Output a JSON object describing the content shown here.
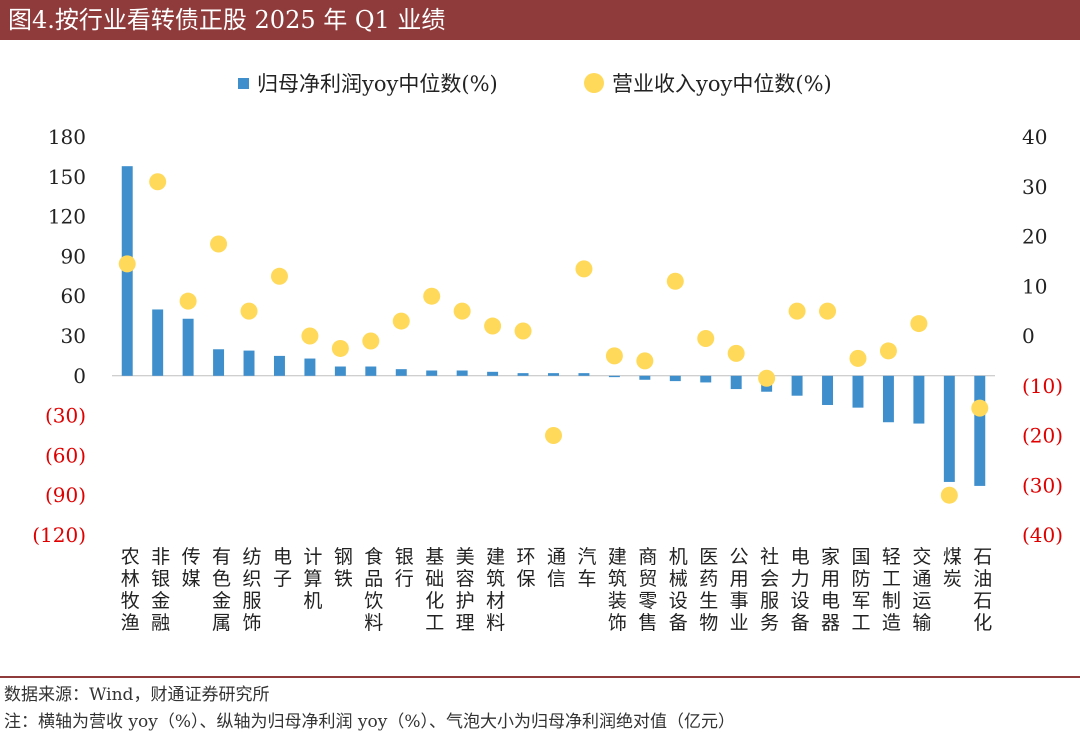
{
  "title": "图4.按行业看转债正股 2025 年 Q1 业绩",
  "source": "数据来源：Wind，财通证券研究所",
  "note": "注：横轴为营收 yoy（%）、纵轴为归母净利润 yoy（%）、气泡大小为归母净利润绝对值（亿元）",
  "colors": {
    "title_bg": "#8f3b3b",
    "bar": "#3f8fcd",
    "dot": "#ffd95a",
    "negative_tick": "#e00000"
  },
  "chart_data": {
    "type": "bar",
    "categories": [
      "农林牧渔",
      "非银金融",
      "传媒",
      "有色金属",
      "纺织服饰",
      "电子",
      "计算机",
      "钢铁",
      "食品饮料",
      "银行",
      "基础化工",
      "美容护理",
      "建筑材料",
      "环保",
      "通信",
      "汽车",
      "建筑装饰",
      "商贸零售",
      "机械设备",
      "医药生物",
      "公用事业",
      "社会服务",
      "电力设备",
      "家用电器",
      "国防军工",
      "轻工制造",
      "交通运输",
      "煤炭",
      "石油石化"
    ],
    "series": [
      {
        "name": "归母净利润yoy中位数(%)",
        "axis": "left",
        "type": "bar",
        "values": [
          158,
          50,
          43,
          20,
          19,
          15,
          13,
          7,
          7,
          5,
          4,
          4,
          3,
          2,
          2,
          2,
          -1,
          -3,
          -4,
          -5,
          -10,
          -12,
          -15,
          -22,
          -24,
          -35,
          -36,
          -80,
          -83
        ]
      },
      {
        "name": "营业收入yoy中位数(%)",
        "axis": "right",
        "type": "scatter",
        "values": [
          14.5,
          31,
          7,
          18.5,
          5,
          12,
          0,
          -2.5,
          -1,
          3,
          8,
          5,
          2,
          1,
          -20,
          13.5,
          -4,
          -5,
          11,
          -0.5,
          -3.5,
          -8.5,
          5,
          5,
          -4.5,
          -3,
          2.5,
          -32,
          -14.5
        ]
      }
    ],
    "y_left": {
      "ticks": [
        "180",
        "150",
        "120",
        "90",
        "60",
        "30",
        "0",
        "(30)",
        "(60)",
        "(90)",
        "(120)"
      ],
      "ylim": [
        -120,
        180
      ]
    },
    "y_right": {
      "ticks": [
        "40",
        "30",
        "20",
        "10",
        "0",
        "(10)",
        "(20)",
        "(30)",
        "(40)"
      ],
      "ylim": [
        -40,
        40
      ]
    },
    "grid": false,
    "legend_position": "top"
  }
}
